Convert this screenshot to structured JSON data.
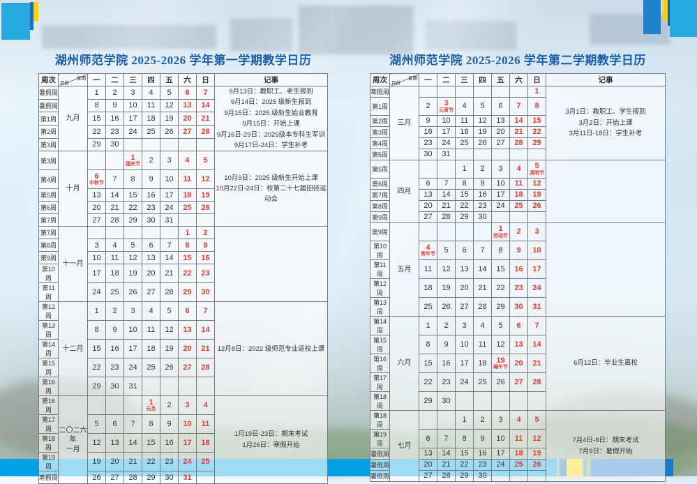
{
  "colors": {
    "accent_cyan": "#29a9e1",
    "accent_blue": "#1b6fb5",
    "accent_yellow": "#ffd102",
    "bar_cyan": "#00a0e4",
    "bar_blue": "#1a78c8",
    "red": "#e23b2e",
    "title_blue": "#1a5fae"
  },
  "calendars": [
    {
      "title": "湖州师范学院 2025-2026 学年第一学期教学日历",
      "header": {
        "week_col": "周次",
        "weekday_label": "星期",
        "month_label": "月份",
        "days": [
          "一",
          "二",
          "三",
          "四",
          "五",
          "六",
          "日"
        ],
        "notes_col": "记事"
      },
      "month_groups": [
        {
          "month": "九月",
          "notes": [
            "9月13日：教职工、老生报到",
            "9月14日：2025 级新生报到",
            "9月15日：2025 级新生始业教育",
            "9月15日：开始上课",
            "9月16日-29日：2025级本专科生军训",
            "9月17日-24日：学生补考"
          ],
          "rows": [
            {
              "week": "暑假周",
              "days": [
                1,
                2,
                3,
                4,
                5,
                6,
                7
              ]
            },
            {
              "week": "暑假周",
              "days": [
                8,
                9,
                10,
                11,
                12,
                13,
                14
              ]
            },
            {
              "week": "第1周",
              "days": [
                15,
                16,
                17,
                18,
                19,
                20,
                21
              ]
            },
            {
              "week": "第2周",
              "days": [
                22,
                23,
                24,
                25,
                26,
                27,
                28
              ]
            },
            {
              "week": "第3周",
              "days": [
                29,
                30,
                "",
                "",
                "",
                "",
                ""
              ]
            }
          ]
        },
        {
          "month": "十月",
          "notes": [
            "10月9日：2025 级新生开始上课",
            "10月22日-24日：校第二十七届田径运动会"
          ],
          "rows": [
            {
              "week": "第3周",
              "days": [
                "",
                "",
                {
                  "n": 1,
                  "holiday": "国庆节"
                },
                2,
                3,
                4,
                5
              ]
            },
            {
              "week": "第4周",
              "days": [
                {
                  "n": 6,
                  "holiday": "中秋节"
                },
                7,
                8,
                9,
                10,
                11,
                12
              ]
            },
            {
              "week": "第5周",
              "days": [
                13,
                14,
                15,
                16,
                17,
                18,
                19
              ]
            },
            {
              "week": "第6周",
              "days": [
                20,
                21,
                22,
                23,
                24,
                25,
                26
              ]
            },
            {
              "week": "第7周",
              "days": [
                27,
                28,
                29,
                30,
                31,
                "",
                ""
              ]
            }
          ]
        },
        {
          "month": "十一月",
          "notes": [],
          "rows": [
            {
              "week": "第7周",
              "days": [
                "",
                "",
                "",
                "",
                "",
                1,
                2
              ]
            },
            {
              "week": "第8周",
              "days": [
                3,
                4,
                5,
                6,
                7,
                8,
                9
              ]
            },
            {
              "week": "第9周",
              "days": [
                10,
                11,
                12,
                13,
                14,
                15,
                16
              ]
            },
            {
              "week": "第10周",
              "days": [
                17,
                18,
                19,
                20,
                21,
                22,
                23
              ]
            },
            {
              "week": "第11周",
              "days": [
                24,
                25,
                26,
                27,
                28,
                29,
                30
              ]
            }
          ]
        },
        {
          "month": "十二月",
          "notes": [
            "12月8日：2022 级师范专业返校上课"
          ],
          "rows": [
            {
              "week": "第12周",
              "days": [
                1,
                2,
                3,
                4,
                5,
                6,
                7
              ]
            },
            {
              "week": "第13周",
              "days": [
                8,
                9,
                10,
                11,
                12,
                13,
                14
              ]
            },
            {
              "week": "第14周",
              "days": [
                15,
                16,
                17,
                18,
                19,
                20,
                21
              ]
            },
            {
              "week": "第15周",
              "days": [
                22,
                23,
                24,
                25,
                26,
                27,
                28
              ]
            },
            {
              "week": "第16周",
              "days": [
                29,
                30,
                31,
                "",
                "",
                "",
                ""
              ]
            }
          ]
        },
        {
          "month": "二〇二六年\n一月",
          "month_lines": [
            "二〇二六年",
            "一月"
          ],
          "notes": [
            "1月19日-23日：期末考试",
            "1月26日：寒假开始"
          ],
          "rows": [
            {
              "week": "第16周",
              "days": [
                "",
                "",
                "",
                {
                  "n": 1,
                  "holiday": "元旦"
                },
                2,
                3,
                4
              ]
            },
            {
              "week": "第17周",
              "days": [
                5,
                6,
                7,
                8,
                9,
                10,
                11
              ]
            },
            {
              "week": "第18周",
              "days": [
                12,
                13,
                14,
                15,
                16,
                17,
                18
              ]
            },
            {
              "week": "第19周",
              "days": [
                19,
                20,
                21,
                22,
                23,
                24,
                25
              ]
            },
            {
              "week": "寒假周",
              "days": [
                26,
                27,
                28,
                29,
                30,
                31,
                ""
              ]
            }
          ]
        }
      ]
    },
    {
      "title": "湖州师范学院 2025-2026 学年第二学期教学日历",
      "header": {
        "week_col": "周次",
        "weekday_label": "星期",
        "month_label": "月份",
        "days": [
          "一",
          "二",
          "三",
          "四",
          "五",
          "六",
          "日"
        ],
        "notes_col": "记事"
      },
      "month_groups": [
        {
          "month": "三月",
          "notes": [
            "3月1日：教职工、学生报到",
            "3月2日：开始上课",
            "3月11日-18日：学生补考"
          ],
          "rows": [
            {
              "week": "寒假周",
              "days": [
                "",
                "",
                "",
                "",
                "",
                "",
                1
              ]
            },
            {
              "week": "第1周",
              "days": [
                2,
                {
                  "n": 3,
                  "holiday": "元宵节"
                },
                4,
                5,
                6,
                7,
                8
              ]
            },
            {
              "week": "第2周",
              "days": [
                9,
                10,
                11,
                12,
                13,
                14,
                15
              ]
            },
            {
              "week": "第3周",
              "days": [
                16,
                17,
                18,
                19,
                20,
                21,
                22
              ]
            },
            {
              "week": "第4周",
              "days": [
                23,
                24,
                25,
                26,
                27,
                28,
                29
              ]
            },
            {
              "week": "第5周",
              "days": [
                30,
                31,
                "",
                "",
                "",
                "",
                ""
              ]
            }
          ]
        },
        {
          "month": "四月",
          "notes": [],
          "rows": [
            {
              "week": "第5周",
              "days": [
                "",
                "",
                1,
                2,
                3,
                4,
                {
                  "n": 5,
                  "holiday": "清明节"
                }
              ]
            },
            {
              "week": "第6周",
              "days": [
                6,
                7,
                8,
                9,
                10,
                11,
                12
              ]
            },
            {
              "week": "第7周",
              "days": [
                13,
                14,
                15,
                16,
                17,
                18,
                19
              ]
            },
            {
              "week": "第8周",
              "days": [
                20,
                21,
                22,
                23,
                24,
                25,
                26
              ]
            },
            {
              "week": "第9周",
              "days": [
                27,
                28,
                29,
                30,
                "",
                "",
                ""
              ]
            }
          ]
        },
        {
          "month": "五月",
          "notes": [],
          "rows": [
            {
              "week": "第9周",
              "days": [
                "",
                "",
                "",
                "",
                {
                  "n": 1,
                  "holiday": "劳动节"
                },
                2,
                3
              ]
            },
            {
              "week": "第10周",
              "days": [
                {
                  "n": 4,
                  "holiday": "青年节"
                },
                5,
                6,
                7,
                8,
                9,
                10
              ]
            },
            {
              "week": "第11周",
              "days": [
                11,
                12,
                13,
                14,
                15,
                16,
                17
              ]
            },
            {
              "week": "第12周",
              "days": [
                18,
                19,
                20,
                21,
                22,
                23,
                24
              ]
            },
            {
              "week": "第13周",
              "days": [
                25,
                26,
                27,
                28,
                29,
                30,
                31
              ]
            }
          ]
        },
        {
          "month": "六月",
          "notes": [
            "6月12日：毕业生离校"
          ],
          "rows": [
            {
              "week": "第14周",
              "days": [
                1,
                2,
                3,
                4,
                5,
                6,
                7
              ]
            },
            {
              "week": "第15周",
              "days": [
                8,
                9,
                10,
                11,
                12,
                13,
                14
              ]
            },
            {
              "week": "第16周",
              "days": [
                15,
                16,
                17,
                18,
                {
                  "n": 19,
                  "holiday": "端午节"
                },
                20,
                21
              ]
            },
            {
              "week": "第17周",
              "days": [
                22,
                23,
                24,
                25,
                26,
                27,
                28
              ]
            },
            {
              "week": "第18周",
              "days": [
                29,
                30,
                "",
                "",
                "",
                "",
                ""
              ]
            }
          ]
        },
        {
          "month": "七月",
          "notes": [
            "7月4日-8日：期末考试",
            "7月9日：暑假开始"
          ],
          "rows": [
            {
              "week": "第18周",
              "days": [
                "",
                "",
                1,
                2,
                3,
                4,
                5
              ]
            },
            {
              "week": "第19周",
              "days": [
                6,
                7,
                8,
                9,
                10,
                11,
                12
              ]
            },
            {
              "week": "暑假周",
              "days": [
                13,
                14,
                15,
                16,
                17,
                18,
                19
              ]
            },
            {
              "week": "暑假周",
              "days": [
                20,
                21,
                22,
                23,
                24,
                25,
                26
              ]
            },
            {
              "week": "暑假周",
              "days": [
                27,
                28,
                29,
                30,
                "",
                "",
                ""
              ]
            }
          ]
        }
      ]
    }
  ]
}
